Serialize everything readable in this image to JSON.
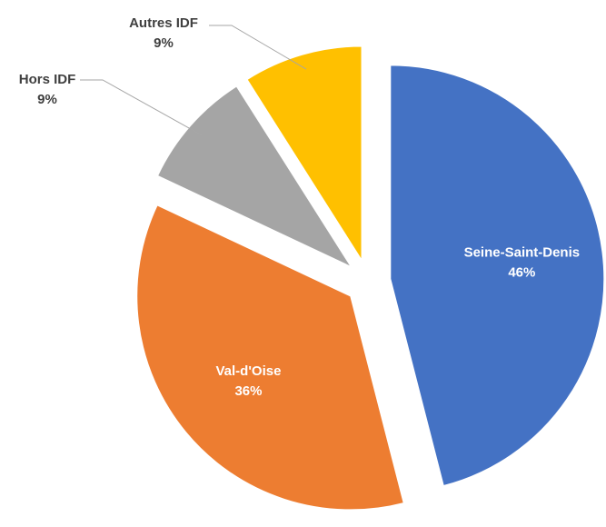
{
  "chart_data": {
    "type": "pie",
    "categories": [
      "Seine-Saint-Denis",
      "Val-d'Oise",
      "Hors IDF",
      "Autres IDF"
    ],
    "values": [
      46,
      36,
      9,
      9
    ],
    "value_labels": [
      "46%",
      "36%",
      "9%",
      "9%"
    ],
    "colors": [
      "#4472c4",
      "#ed7d31",
      "#a5a5a5",
      "#ffc000"
    ],
    "start_angle": 0,
    "direction": "clockwise",
    "exploded": true
  }
}
